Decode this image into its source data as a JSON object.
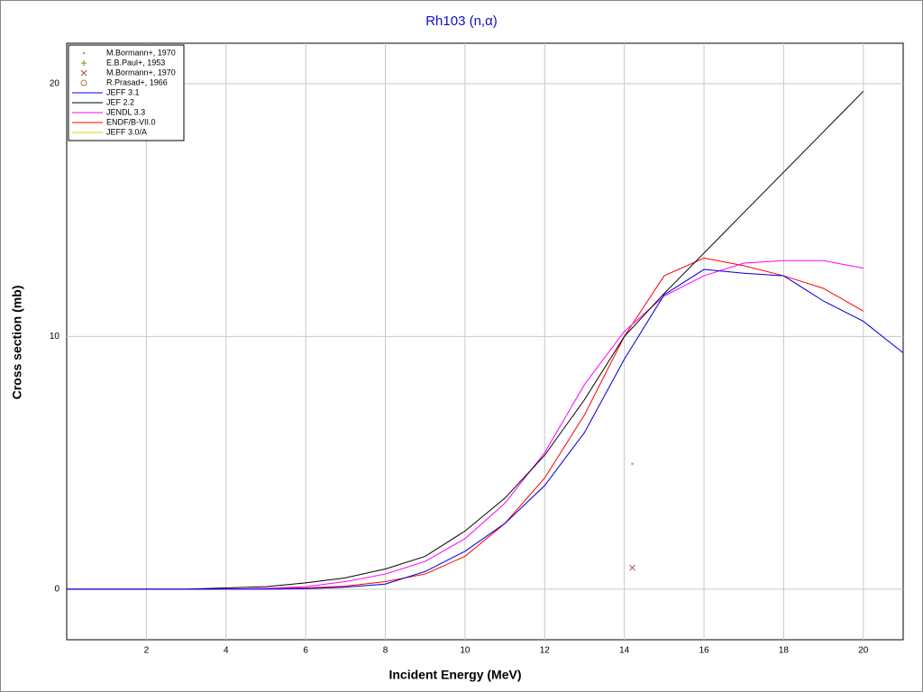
{
  "chart_data": {
    "type": "line",
    "title": "Rh103 (n,α)",
    "xlabel": "Incident Energy (MeV)",
    "ylabel": "Cross section (mb)",
    "x": [
      0,
      1,
      2,
      3,
      4,
      5,
      6,
      7,
      8,
      9,
      10,
      11,
      12,
      13,
      14,
      15,
      16,
      17,
      18,
      19,
      20,
      21
    ],
    "xlim": [
      0,
      21
    ],
    "xticks": [
      2,
      4,
      6,
      8,
      10,
      12,
      14,
      16,
      18,
      20
    ],
    "ylim": [
      -2,
      21.6
    ],
    "yticks": [
      0,
      10,
      20
    ],
    "grid": true,
    "legend": "top-left",
    "markers": [
      {
        "name": "M.Bormann+, 1970",
        "color": "#a0a0a0",
        "marker": "dot",
        "x": [
          14.2
        ],
        "values": [
          4.96
        ]
      },
      {
        "name": "E.B.Paul+, 1953",
        "color": "#8b8b00",
        "marker": "plus",
        "x": [],
        "values": []
      },
      {
        "name": "M.Bormann+, 1970",
        "color": "#a05050",
        "marker": "cross",
        "x": [
          14.2
        ],
        "values": [
          0.85
        ]
      },
      {
        "name": "R.Prasad+, 1966",
        "color": "#a08040",
        "marker": "circle",
        "x": [],
        "values": []
      }
    ],
    "series": [
      {
        "name": "JEFF 3.1",
        "color": "#0000ff",
        "values": [
          0,
          0,
          0,
          0,
          0,
          0,
          0.02,
          0.08,
          0.2,
          0.7,
          1.5,
          2.6,
          4.1,
          6.2,
          9.1,
          11.65,
          12.65,
          12.5,
          12.4,
          11.4,
          10.6,
          9.35
        ]
      },
      {
        "name": "JEF 2.2",
        "color": "#000000",
        "values": [
          0,
          0,
          0,
          0,
          0.05,
          0.1,
          0.25,
          0.45,
          0.8,
          1.3,
          2.3,
          3.6,
          5.3,
          7.5,
          10.0,
          11.7,
          13.3,
          14.9,
          16.5,
          18.1,
          19.7,
          null
        ]
      },
      {
        "name": "JENDL 3.3",
        "color": "#ff00ff",
        "values": [
          0,
          0,
          0,
          0,
          0,
          0.03,
          0.1,
          0.3,
          0.6,
          1.1,
          2.0,
          3.4,
          5.4,
          8.1,
          10.2,
          11.6,
          12.4,
          12.9,
          13.0,
          13.0,
          12.7,
          null
        ]
      },
      {
        "name": "ENDF/B-VII.0",
        "color": "#ff0000",
        "values": [
          0,
          0,
          0,
          0,
          0,
          0.02,
          0.05,
          0.12,
          0.3,
          0.6,
          1.3,
          2.6,
          4.4,
          6.9,
          10.0,
          12.4,
          13.1,
          12.8,
          12.4,
          11.9,
          11.0,
          null
        ]
      },
      {
        "name": "JEFF 3.0/A",
        "color": "#e0d000",
        "values": [
          0,
          0,
          0,
          0,
          0,
          0,
          0.02,
          0.08,
          0.2,
          0.7,
          1.5,
          2.6,
          4.1,
          6.2,
          9.1,
          11.65,
          12.65,
          12.5,
          12.4,
          11.4,
          10.6,
          9.35
        ]
      }
    ]
  }
}
